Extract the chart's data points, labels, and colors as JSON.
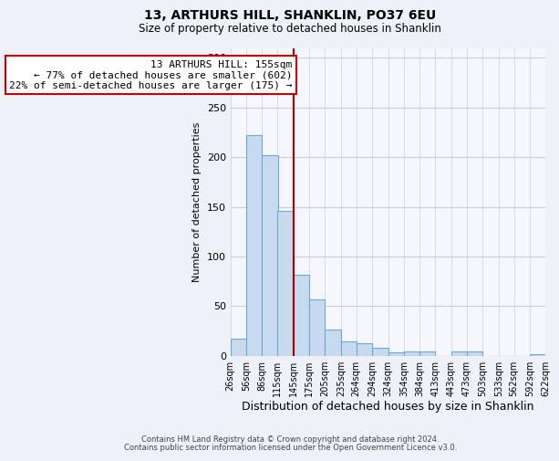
{
  "title": "13, ARTHURS HILL, SHANKLIN, PO37 6EU",
  "subtitle": "Size of property relative to detached houses in Shanklin",
  "xlabel": "Distribution of detached houses by size in Shanklin",
  "ylabel": "Number of detached properties",
  "bar_left_edges": [
    26,
    56,
    86,
    115,
    145,
    175,
    205,
    235,
    264,
    294,
    324,
    354,
    384,
    413,
    443,
    473,
    503,
    533,
    562,
    592
  ],
  "bar_heights": [
    17,
    222,
    202,
    146,
    82,
    57,
    26,
    14,
    13,
    8,
    3,
    4,
    4,
    0,
    4,
    4,
    0,
    0,
    0,
    2
  ],
  "bar_widths": [
    30,
    30,
    30,
    29,
    30,
    30,
    30,
    29,
    30,
    30,
    30,
    30,
    29,
    30,
    30,
    30,
    30,
    29,
    30,
    30
  ],
  "tick_labels": [
    "26sqm",
    "56sqm",
    "86sqm",
    "115sqm",
    "145sqm",
    "175sqm",
    "205sqm",
    "235sqm",
    "264sqm",
    "294sqm",
    "324sqm",
    "354sqm",
    "384sqm",
    "413sqm",
    "443sqm",
    "473sqm",
    "503sqm",
    "533sqm",
    "562sqm",
    "592sqm",
    "622sqm"
  ],
  "bar_color": "#c8daf0",
  "bar_edge_color": "#6aaad4",
  "vline_x": 145,
  "vline_color": "#aa0000",
  "annotation_title": "13 ARTHURS HILL: 155sqm",
  "annotation_line1": "← 77% of detached houses are smaller (602)",
  "annotation_line2": "22% of semi-detached houses are larger (175) →",
  "annotation_box_facecolor": "#ffffff",
  "annotation_box_edgecolor": "#cc0000",
  "ylim": [
    0,
    310
  ],
  "yticks": [
    0,
    50,
    100,
    150,
    200,
    250,
    300
  ],
  "footer1": "Contains HM Land Registry data © Crown copyright and database right 2024.",
  "footer2": "Contains public sector information licensed under the Open Government Licence v3.0.",
  "fig_facecolor": "#eef2f8",
  "plot_facecolor": "#f5f7fc",
  "grid_color": "#c8cfe0",
  "title_fontsize": 10,
  "subtitle_fontsize": 8.5,
  "xlabel_fontsize": 9,
  "ylabel_fontsize": 8,
  "tick_fontsize": 7,
  "footer_fontsize": 6,
  "annotation_fontsize": 8
}
